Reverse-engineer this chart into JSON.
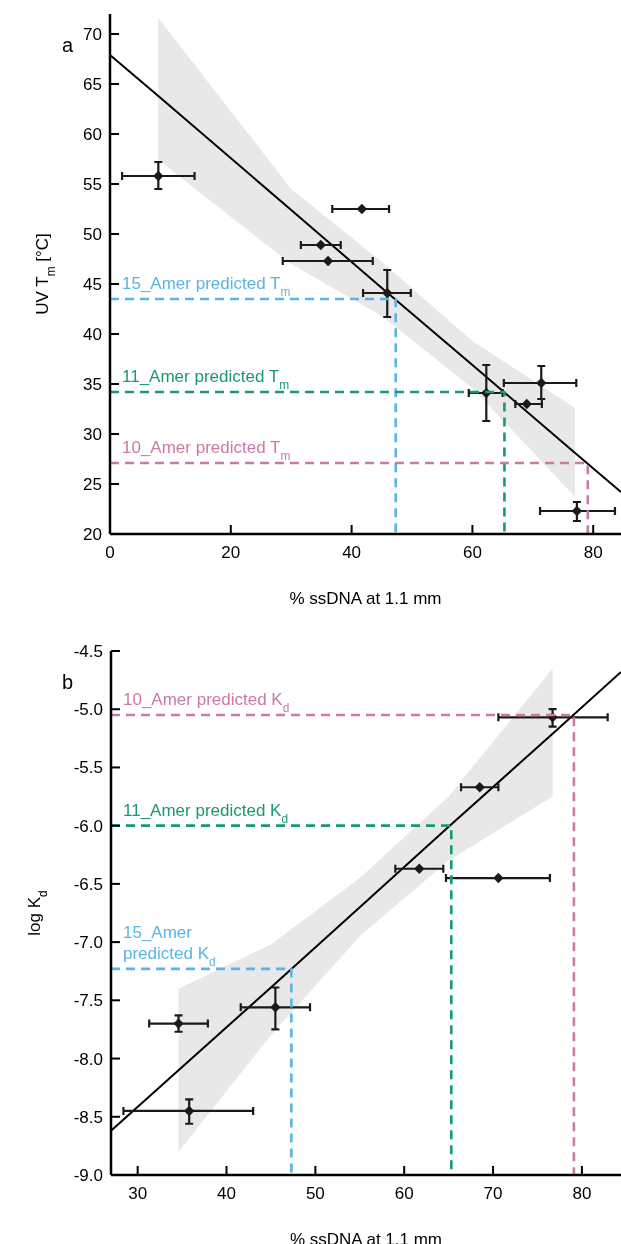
{
  "chart_data": [
    {
      "type": "scatter",
      "title": "a",
      "xlabel": "% ssDNA at 1.1 mm",
      "ylabel": "UV T$_{m}$ [°C]",
      "xlim": [
        0,
        84.6
      ],
      "ylim": [
        20,
        72
      ],
      "xticks": [
        0,
        20,
        40,
        60,
        80
      ],
      "yticks": [
        20,
        25,
        30,
        35,
        40,
        45,
        50,
        55,
        60,
        65,
        70
      ],
      "series": [
        {
          "type": "line",
          "color": "#000000",
          "line_style": "solid",
          "x": [
            0,
            8,
            30,
            45,
            60,
            77,
            84.6
          ],
          "values": [
            67.9,
            63.8,
            52.4,
            44.6,
            36.9,
            28.1,
            24.2
          ],
          "lower": [
            null,
            57.4,
            47.0,
            41.8,
            34.6,
            23.7,
            null
          ],
          "upper": [
            null,
            71.6,
            54.5,
            47.2,
            39.3,
            32.6,
            null
          ]
        },
        {
          "marker": "diamond",
          "color": "#1a1a1a",
          "x": [
            8,
            41.7,
            34.9,
            36.1,
            45.9,
            62.3,
            71.4,
            69.0,
            77.3
          ],
          "values": [
            55.8,
            52.5,
            48.9,
            47.3,
            44.1,
            34.1,
            35.1,
            33.0,
            22.3
          ],
          "errors": [
            [
              54.5,
              57.2
            ],
            null,
            null,
            null,
            [
              41.7,
              46.4
            ],
            [
              31.3,
              36.9
            ],
            [
              33.5,
              36.8
            ],
            null,
            [
              21.3,
              23.2
            ]
          ],
          "xerrors": [
            [
              2,
              14
            ],
            [
              36.8,
              46.2
            ],
            [
              31.6,
              38.2
            ],
            [
              28.6,
              43.5
            ],
            [
              41.9,
              49.8
            ],
            [
              59.4,
              65
            ],
            [
              65.2,
              77.2
            ],
            [
              67.1,
              71.5
            ],
            [
              71.2,
              83.6
            ]
          ]
        },
        {
          "type": "line",
          "name": "15_Amer predicted T$_{m}$",
          "color": "#5ab4e5",
          "line_style": "dashed",
          "x": [
            0,
            47.3,
            47.3
          ],
          "values": [
            43.5,
            43.5,
            20
          ]
        },
        {
          "type": "line",
          "name": "11_Amer predicted T$_{m}$",
          "color": "#1a9a6c",
          "line_style": "dashed",
          "x": [
            0,
            65.3,
            65.3
          ],
          "values": [
            34.2,
            34.2,
            20
          ]
        },
        {
          "type": "line",
          "name": "10_Amer predicted T$_{m}$",
          "color": "#cc79a7",
          "line_style": "dashed",
          "x": [
            0,
            79.1,
            79.1
          ],
          "values": [
            27.1,
            27.1,
            20
          ]
        }
      ]
    },
    {
      "type": "scatter",
      "title": "b",
      "xlabel": "% ssDNA at 1.1 mm",
      "ylabel": "log K$_{d}$",
      "xlim": [
        27,
        84.4
      ],
      "ylim": [
        -9,
        -4.5
      ],
      "xticks": [
        30,
        40,
        50,
        60,
        70,
        80
      ],
      "yticks": [
        {
          "value": -9,
          "label": "-9.0"
        },
        -8.5,
        {
          "value": -8,
          "label": "-8.0"
        },
        -7.5,
        {
          "value": -7,
          "label": "-7.0"
        },
        -6.5,
        {
          "value": -6,
          "label": "-6.0"
        },
        -5.5,
        {
          "value": -5,
          "label": "-5.0"
        },
        -4.5
      ],
      "series": [
        {
          "type": "line",
          "color": "#000000",
          "line_style": "solid",
          "x": [
            27,
            34.6,
            45,
            55,
            65,
            76.7,
            84.4
          ],
          "values": [
            -8.62,
            -8.1,
            -7.39,
            -6.7,
            -6.01,
            -5.21,
            -4.68
          ],
          "lower": [
            null,
            -8.8,
            -7.8,
            -6.95,
            -6.3,
            -5.75,
            null
          ],
          "upper": [
            null,
            -7.4,
            -7.02,
            -6.45,
            -5.75,
            -4.65,
            null
          ]
        },
        {
          "marker": "diamond",
          "color": "#1a1a1a",
          "x": [
            76.7,
            68.5,
            61.7,
            70.6,
            45.5,
            34.6,
            35.8
          ],
          "values": [
            -5.07,
            -5.67,
            -6.37,
            -6.45,
            -7.56,
            -7.7,
            -8.45
          ],
          "errors": [
            [
              -5.15,
              -5.0
            ],
            null,
            null,
            null,
            [
              -7.75,
              -7.39
            ],
            [
              -7.77,
              -7.63
            ],
            [
              -8.56,
              -8.35
            ]
          ],
          "xerrors": [
            [
              70.6,
              82.9
            ],
            [
              66.4,
              70.6
            ],
            [
              59.0,
              64.4
            ],
            [
              64.7,
              76.4
            ],
            [
              41.6,
              49.4
            ],
            [
              31.3,
              37.9
            ],
            [
              28.4,
              43.0
            ]
          ]
        },
        {
          "type": "line",
          "name": "10_Amer predicted K$_{d}$",
          "color": "#cc79a7",
          "line_style": "dashed",
          "x": [
            27,
            79.1,
            79.1
          ],
          "values": [
            -5.05,
            -5.05,
            -9
          ]
        },
        {
          "type": "line",
          "name": "11_Amer predicted K$_{d}$",
          "color": "#1a9a6c",
          "line_style": "dashed",
          "x": [
            27,
            65.3,
            65.3
          ],
          "values": [
            -6.0,
            -6.0,
            -9
          ]
        },
        {
          "type": "line",
          "name": "15_Amer\npredicted K$_{d}$",
          "color": "#5ab4e5",
          "line_style": "dashed",
          "x": [
            27,
            47.3,
            47.3
          ],
          "values": [
            -7.23,
            -7.23,
            -9
          ]
        }
      ]
    }
  ]
}
